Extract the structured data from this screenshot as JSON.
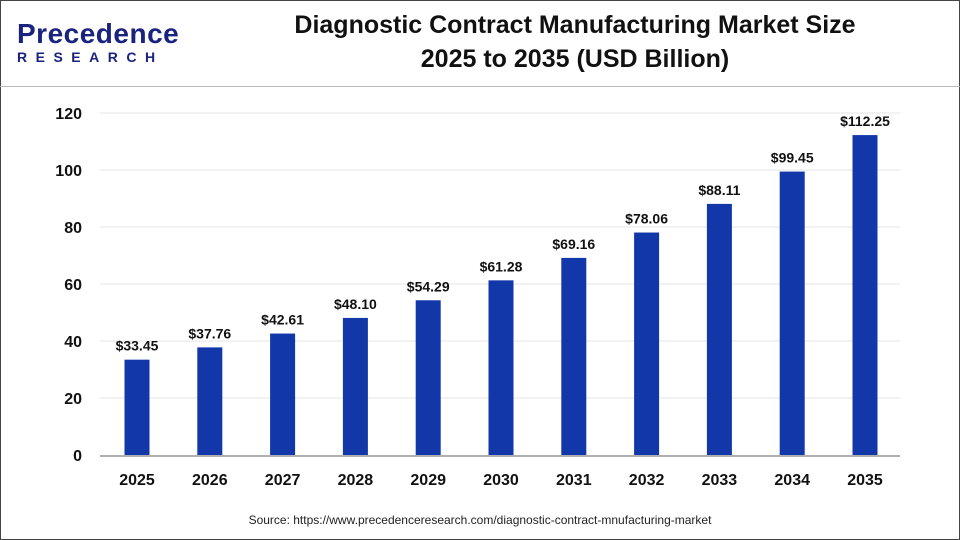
{
  "logo": {
    "line1": "Precedence",
    "line2": "RESEARCH"
  },
  "title_line1": "Diagnostic Contract Manufacturing Market Size",
  "title_line2": "2025 to 2035 (USD Billion)",
  "source": "Source: https://www.precedenceresearch.com/diagnostic-contract-mnufacturing-market",
  "chart_data": {
    "type": "bar",
    "title": "Diagnostic Contract Manufacturing Market Size 2025 to 2035 (USD Billion)",
    "categories": [
      "2025",
      "2026",
      "2027",
      "2028",
      "2029",
      "2030",
      "2031",
      "2032",
      "2033",
      "2034",
      "2035"
    ],
    "values": [
      33.45,
      37.76,
      42.61,
      48.1,
      54.29,
      61.28,
      69.16,
      78.06,
      88.11,
      99.45,
      112.25
    ],
    "data_labels": [
      "$33.45",
      "$37.76",
      "$42.61",
      "$48.10",
      "$54.29",
      "$61.28",
      "$69.16",
      "$78.06",
      "$88.11",
      "$99.45",
      "$112.25"
    ],
    "yticks": [
      0,
      20,
      40,
      60,
      80,
      100,
      120
    ],
    "ylim": [
      0,
      120
    ],
    "grid": true,
    "bar_color": "#1237a8"
  }
}
